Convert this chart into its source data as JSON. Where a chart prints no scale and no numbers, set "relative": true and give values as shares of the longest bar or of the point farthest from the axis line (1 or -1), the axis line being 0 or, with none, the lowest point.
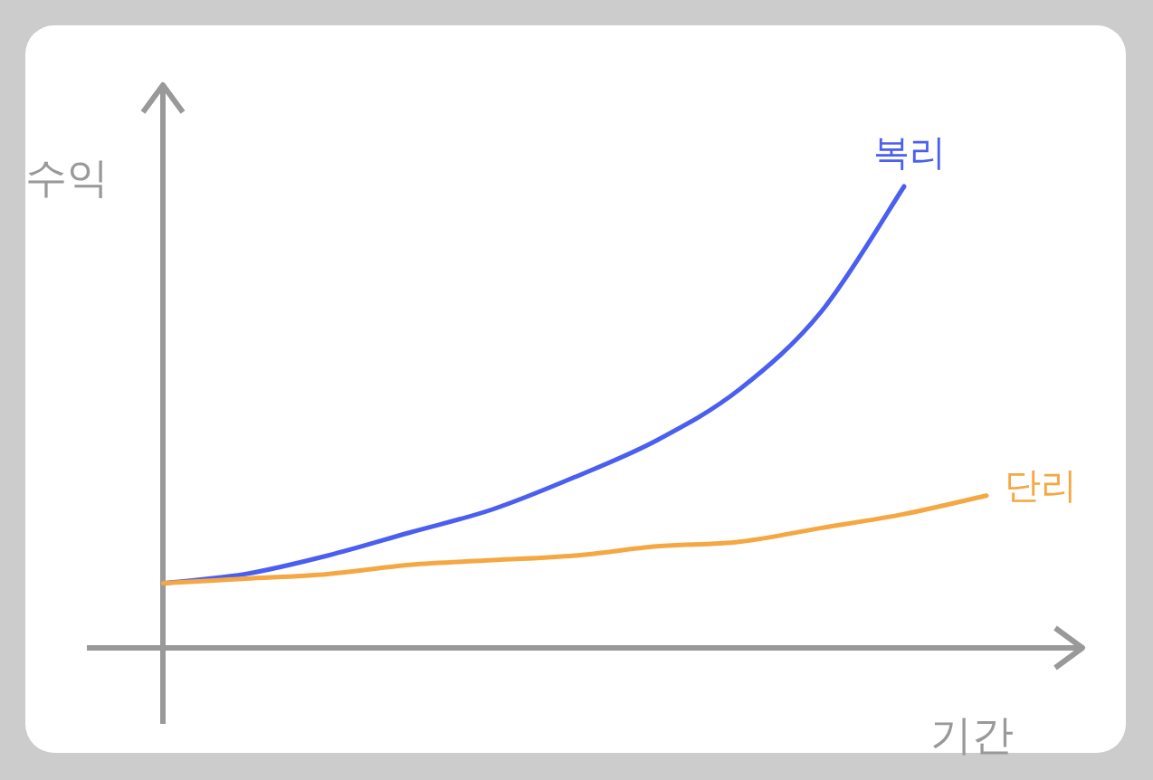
{
  "chart_data": {
    "type": "line",
    "relative": true,
    "xlabel": "기간",
    "ylabel": "수익",
    "categories": [
      null,
      null,
      null,
      null,
      null,
      null,
      null,
      null,
      null,
      null,
      null
    ],
    "series": [
      {
        "name": "복리",
        "color": "#4a5ff0",
        "values": [
          0.14,
          0.16,
          0.2,
          0.25,
          0.3,
          0.37,
          0.45,
          0.56,
          0.73,
          1,
          null
        ]
      },
      {
        "name": "단리",
        "color": "#f5a742",
        "values": [
          0.14,
          0.15,
          0.16,
          0.18,
          0.19,
          0.2,
          0.22,
          0.23,
          0.26,
          0.29,
          0.33
        ]
      }
    ]
  }
}
